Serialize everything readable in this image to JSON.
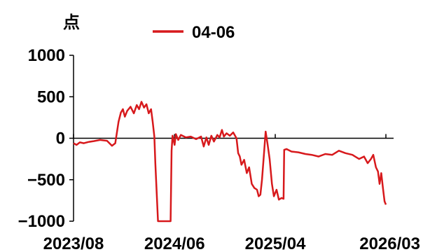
{
  "chart_data": {
    "type": "line",
    "unit_label": "点",
    "ylim": [
      -1000,
      1000
    ],
    "y_ticks": [
      1000,
      500,
      0,
      -500,
      -1000
    ],
    "x_ticks": [
      "2023/08",
      "2024/06",
      "2025/04",
      "2026/03"
    ],
    "x_range": [
      "2023-08-01",
      "2026-03-20"
    ],
    "grid": false,
    "legend_position": "top",
    "series": [
      {
        "name": "04-06",
        "color": "#d7191c",
        "points": [
          [
            "2023-08-01",
            -60
          ],
          [
            "2023-08-10",
            -80
          ],
          [
            "2023-08-20",
            -50
          ],
          [
            "2023-09-01",
            -60
          ],
          [
            "2023-09-15",
            -45
          ],
          [
            "2023-10-01",
            -35
          ],
          [
            "2023-10-20",
            -20
          ],
          [
            "2023-11-10",
            -30
          ],
          [
            "2023-11-25",
            -90
          ],
          [
            "2023-12-05",
            -60
          ],
          [
            "2023-12-15",
            200
          ],
          [
            "2023-12-22",
            310
          ],
          [
            "2023-12-28",
            350
          ],
          [
            "2024-01-03",
            260
          ],
          [
            "2024-01-10",
            330
          ],
          [
            "2024-01-20",
            380
          ],
          [
            "2024-01-30",
            300
          ],
          [
            "2024-02-08",
            400
          ],
          [
            "2024-02-15",
            350
          ],
          [
            "2024-02-22",
            440
          ],
          [
            "2024-03-01",
            370
          ],
          [
            "2024-03-08",
            410
          ],
          [
            "2024-03-15",
            300
          ],
          [
            "2024-03-22",
            350
          ],
          [
            "2024-03-27",
            200
          ],
          [
            "2024-04-01",
            20
          ],
          [
            "2024-04-04",
            -300
          ],
          [
            "2024-04-08",
            -650
          ],
          [
            "2024-04-12",
            -1000
          ],
          [
            "2024-05-20",
            -1000
          ],
          [
            "2024-05-23",
            -150
          ],
          [
            "2024-05-26",
            30
          ],
          [
            "2024-06-01",
            -80
          ],
          [
            "2024-06-05",
            50
          ],
          [
            "2024-06-12",
            -20
          ],
          [
            "2024-06-20",
            40
          ],
          [
            "2024-07-05",
            10
          ],
          [
            "2024-07-20",
            20
          ],
          [
            "2024-08-05",
            -10
          ],
          [
            "2024-08-20",
            20
          ],
          [
            "2024-08-28",
            -100
          ],
          [
            "2024-09-05",
            10
          ],
          [
            "2024-09-12",
            -80
          ],
          [
            "2024-09-20",
            30
          ],
          [
            "2024-09-28",
            -40
          ],
          [
            "2024-10-08",
            40
          ],
          [
            "2024-10-15",
            10
          ],
          [
            "2024-10-22",
            100
          ],
          [
            "2024-10-28",
            20
          ],
          [
            "2024-11-05",
            60
          ],
          [
            "2024-11-15",
            30
          ],
          [
            "2024-11-25",
            70
          ],
          [
            "2024-12-05",
            0
          ],
          [
            "2024-12-10",
            -180
          ],
          [
            "2024-12-15",
            -220
          ],
          [
            "2024-12-20",
            -320
          ],
          [
            "2024-12-28",
            -260
          ],
          [
            "2025-01-05",
            -420
          ],
          [
            "2025-01-12",
            -350
          ],
          [
            "2025-01-20",
            -550
          ],
          [
            "2025-01-28",
            -600
          ],
          [
            "2025-02-05",
            -620
          ],
          [
            "2025-02-10",
            -700
          ],
          [
            "2025-02-15",
            -680
          ],
          [
            "2025-02-20",
            -500
          ],
          [
            "2025-02-26",
            -180
          ],
          [
            "2025-03-03",
            80
          ],
          [
            "2025-03-08",
            -50
          ],
          [
            "2025-03-15",
            -250
          ],
          [
            "2025-03-22",
            -550
          ],
          [
            "2025-03-28",
            -700
          ],
          [
            "2025-04-05",
            -620
          ],
          [
            "2025-04-12",
            -740
          ],
          [
            "2025-04-20",
            -720
          ],
          [
            "2025-04-26",
            -730
          ],
          [
            "2025-04-28",
            -140
          ],
          [
            "2025-05-05",
            -130
          ],
          [
            "2025-05-20",
            -160
          ],
          [
            "2025-06-10",
            -170
          ],
          [
            "2025-07-01",
            -190
          ],
          [
            "2025-07-20",
            -200
          ],
          [
            "2025-08-10",
            -220
          ],
          [
            "2025-08-30",
            -190
          ],
          [
            "2025-09-20",
            -200
          ],
          [
            "2025-10-10",
            -150
          ],
          [
            "2025-10-30",
            -180
          ],
          [
            "2025-11-20",
            -200
          ],
          [
            "2025-12-10",
            -250
          ],
          [
            "2025-12-25",
            -220
          ],
          [
            "2026-01-05",
            -300
          ],
          [
            "2026-01-15",
            -250
          ],
          [
            "2026-01-22",
            -200
          ],
          [
            "2026-01-30",
            -350
          ],
          [
            "2026-02-05",
            -400
          ],
          [
            "2026-02-10",
            -550
          ],
          [
            "2026-02-15",
            -420
          ],
          [
            "2026-02-20",
            -600
          ],
          [
            "2026-02-25",
            -760
          ],
          [
            "2026-03-01",
            -800
          ]
        ]
      }
    ]
  }
}
